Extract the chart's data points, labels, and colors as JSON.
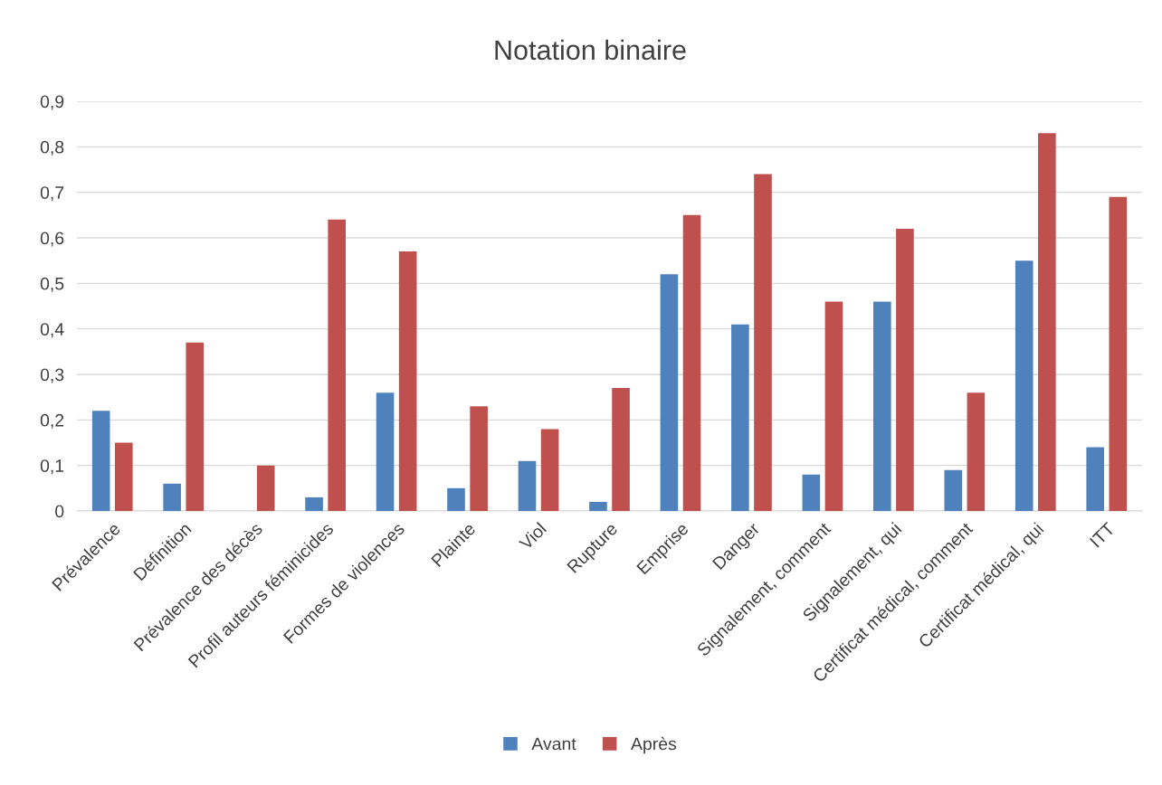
{
  "chart_data": {
    "type": "bar",
    "title": "Notation binaire",
    "categories": [
      "Prévalence",
      "Définition",
      "Prévalence des décès",
      "Profil auteurs féminicides",
      "Formes de violences",
      "Plainte",
      "Viol",
      "Rupture",
      "Emprise",
      "Danger",
      "Signalement, comment",
      "Signalement, qui",
      "Certificat médical, comment",
      "Certificat médical, qui",
      "ITT"
    ],
    "series": [
      {
        "name": "Avant",
        "color": "#4f81bd",
        "values": [
          0.22,
          0.06,
          0,
          0.03,
          0.26,
          0.05,
          0.11,
          0.02,
          0.52,
          0.41,
          0.08,
          0.46,
          0.09,
          0.55,
          0.14
        ]
      },
      {
        "name": "Après",
        "color": "#c0504d",
        "values": [
          0.15,
          0.37,
          0.1,
          0.64,
          0.57,
          0.23,
          0.18,
          0.27,
          0.65,
          0.74,
          0.46,
          0.62,
          0.26,
          0.83,
          0.69
        ]
      }
    ],
    "ylim": [
      0,
      0.9
    ],
    "yticks": [
      0,
      {
        "value": 0.1,
        "label": "0,1"
      },
      {
        "value": 0.2,
        "label": "0,2"
      },
      {
        "value": 0.3,
        "label": "0,3"
      },
      {
        "value": 0.4,
        "label": "0,4"
      },
      {
        "value": 0.5,
        "label": "0,5"
      },
      {
        "value": 0.6,
        "label": "0,6"
      },
      {
        "value": 0.7,
        "label": "0,7"
      },
      {
        "value": 0.8,
        "label": "0,8"
      },
      {
        "value": 0.9,
        "label": "0,9"
      }
    ],
    "grid": "y",
    "legend": "bottom"
  }
}
